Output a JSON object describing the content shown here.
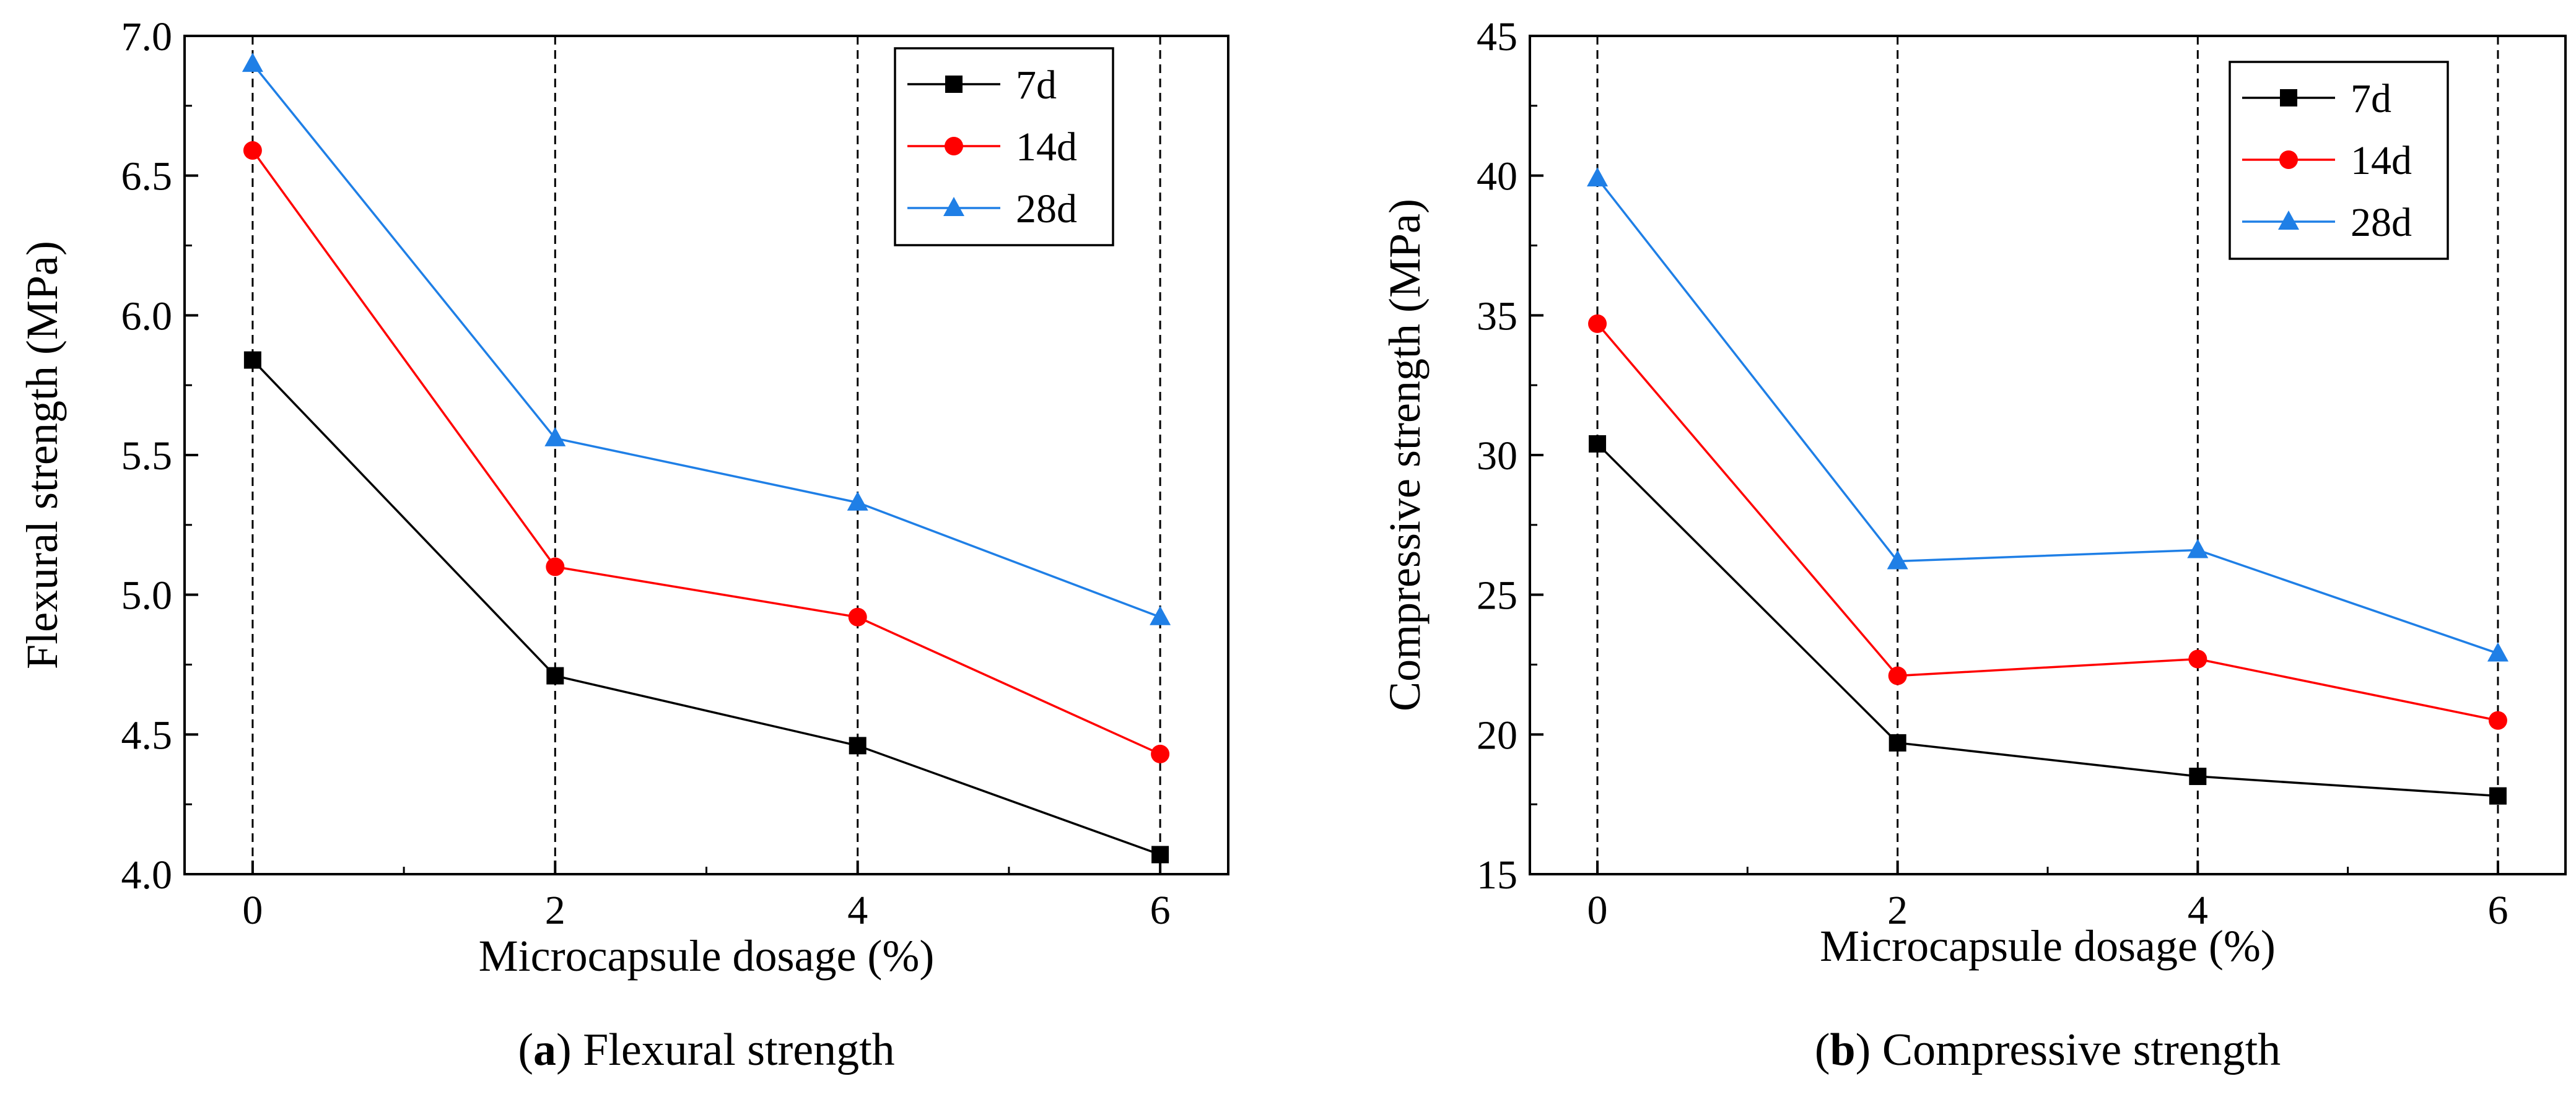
{
  "chart_data": [
    {
      "type": "line",
      "caption_letter": "a",
      "caption_text": " Flexural strength",
      "title": "",
      "xlabel": "Microcapsule dosage (%)",
      "ylabel": "Flexural strength (MPa)",
      "x": [
        0,
        2,
        4,
        6
      ],
      "xticks": [
        "0",
        "2",
        "4",
        "6"
      ],
      "xlim": [
        -0.45,
        6.45
      ],
      "ylim": [
        4.0,
        7.0
      ],
      "yticks": [
        "4.0",
        "4.5",
        "5.0",
        "5.5",
        "6.0",
        "6.5",
        "7.0"
      ],
      "grid": "dashed vertical lines at each dosage",
      "legend_position": "top-right",
      "series": [
        {
          "name": "7d",
          "color": "#000000",
          "marker": "square",
          "values": [
            5.84,
            4.71,
            4.46,
            4.07
          ]
        },
        {
          "name": "14d",
          "color": "#ff0000",
          "marker": "circle",
          "values": [
            6.59,
            5.1,
            4.92,
            4.43
          ]
        },
        {
          "name": "28d",
          "color": "#1f7fe6",
          "marker": "triangle",
          "values": [
            6.9,
            5.56,
            5.33,
            4.92
          ]
        }
      ]
    },
    {
      "type": "line",
      "caption_letter": "b",
      "caption_text": " Compressive strength",
      "title": "",
      "xlabel": "Microcapsule dosage (%)",
      "ylabel": "Compressive strength (MPa)",
      "x": [
        0,
        2,
        4,
        6
      ],
      "xticks": [
        "0",
        "2",
        "4",
        "6"
      ],
      "xlim": [
        -0.45,
        6.45
      ],
      "ylim": [
        15,
        45
      ],
      "yticks": [
        "15",
        "20",
        "25",
        "30",
        "35",
        "40",
        "45"
      ],
      "grid": "dashed vertical lines at each dosage",
      "legend_position": "top-right",
      "series": [
        {
          "name": "7d",
          "color": "#000000",
          "marker": "square",
          "values": [
            30.4,
            19.7,
            18.5,
            17.8
          ]
        },
        {
          "name": "14d",
          "color": "#ff0000",
          "marker": "circle",
          "values": [
            34.7,
            22.1,
            22.7,
            20.5
          ]
        },
        {
          "name": "28d",
          "color": "#1f7fe6",
          "marker": "triangle",
          "values": [
            39.9,
            26.2,
            26.6,
            22.9
          ]
        }
      ]
    }
  ]
}
